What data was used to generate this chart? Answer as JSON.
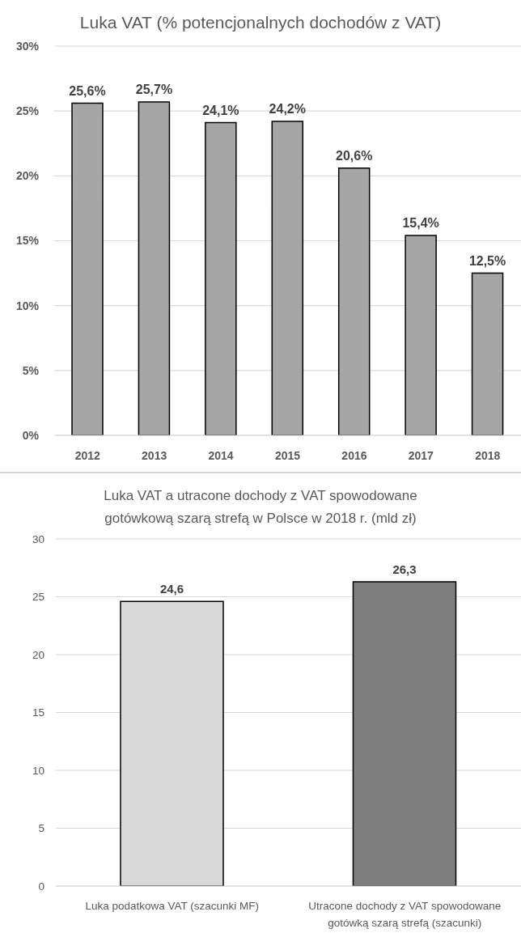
{
  "chart_data": [
    {
      "type": "bar",
      "title": "Luka VAT (% potencjonalnych dochodów z VAT)",
      "categories": [
        "2012",
        "2013",
        "2014",
        "2015",
        "2016",
        "2017",
        "2018"
      ],
      "values": [
        25.6,
        25.7,
        24.1,
        24.2,
        20.6,
        15.4,
        12.5
      ],
      "color": "#a6a6a6",
      "value_labels": [
        "25,6%",
        "25,7%",
        "24,1%",
        "24,2%",
        "20,6%",
        "15,4%",
        "12,5%"
      ],
      "ylim": [
        0,
        30
      ],
      "yticks": [
        {
          "value": 0,
          "label": "0%"
        },
        {
          "value": 5,
          "label": "5%"
        },
        {
          "value": 10,
          "label": "10%"
        },
        {
          "value": 15,
          "label": "15%"
        },
        {
          "value": 20,
          "label": "20%"
        },
        {
          "value": 25,
          "label": "25%"
        },
        {
          "value": 30,
          "label": "30%"
        }
      ],
      "grid": "y"
    },
    {
      "type": "bar",
      "title": "Luka VAT a utracone dochody z VAT spowodowane gotówkową szarą strefą w Polsce w 2018 r. (mld zł)",
      "categories": [
        "Luka podatkowa VAT (szacunki MF)",
        "Utracone dochody z VAT spowodowane gotówką szarą strefą (szacunki)"
      ],
      "values": [
        24.6,
        26.3
      ],
      "colors": [
        "#d9d9d9",
        "#7f7f7f"
      ],
      "value_labels": [
        "24,6",
        "26,3"
      ],
      "ylim": [
        0,
        30
      ],
      "yticks": [
        0,
        5,
        10,
        15,
        20,
        25,
        30
      ],
      "grid": "y"
    }
  ]
}
